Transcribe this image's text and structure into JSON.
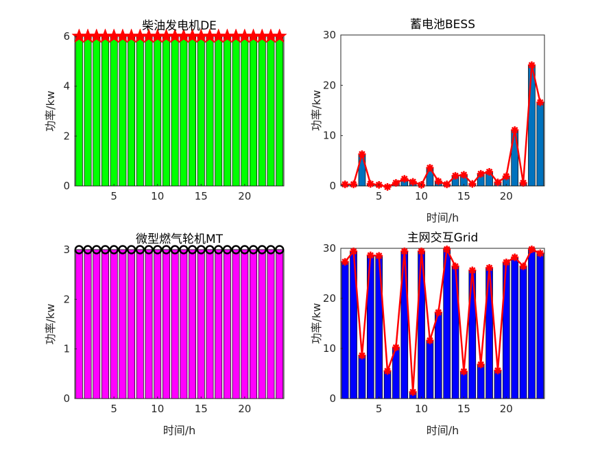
{
  "chart_data": [
    {
      "type": "bar",
      "title": "柴油发电机DE",
      "xlabel": "",
      "ylabel": "功率/kw",
      "xlim": [
        0.5,
        24.5
      ],
      "ylim": [
        0,
        6
      ],
      "xticks": [
        5,
        10,
        15,
        20
      ],
      "yticks": [
        0,
        2,
        4,
        6
      ],
      "grid": false,
      "x": [
        1,
        2,
        3,
        4,
        5,
        6,
        7,
        8,
        9,
        10,
        11,
        12,
        13,
        14,
        15,
        16,
        17,
        18,
        19,
        20,
        21,
        22,
        23,
        24
      ],
      "values": [
        6,
        6,
        6,
        6,
        6,
        6,
        6,
        6,
        6,
        6,
        6,
        6,
        6,
        6,
        6,
        6,
        6,
        6,
        6,
        6,
        6,
        6,
        6,
        6
      ],
      "colors": {
        "bar": "#00ff00",
        "edge": "#000000",
        "marker": "#ff0000"
      },
      "marker": "pentagram",
      "line": false
    },
    {
      "type": "bar",
      "title": "蓄电池BESS",
      "xlabel": "时间/h",
      "ylabel": "功率/kw",
      "xlim": [
        0.5,
        24.5
      ],
      "ylim": [
        0,
        30
      ],
      "xticks": [
        5,
        10,
        15,
        20
      ],
      "yticks": [
        0,
        10,
        20,
        30
      ],
      "grid": false,
      "x": [
        1,
        2,
        3,
        4,
        5,
        6,
        7,
        8,
        9,
        10,
        11,
        12,
        13,
        14,
        15,
        16,
        17,
        18,
        19,
        20,
        21,
        22,
        23,
        24
      ],
      "values": [
        0.3,
        0.3,
        6.3,
        0.4,
        0.2,
        -0.2,
        0.6,
        1.4,
        0.8,
        0.2,
        3.6,
        0.9,
        0.3,
        2.0,
        2.2,
        0.4,
        2.4,
        2.8,
        0.7,
        1.9,
        11.1,
        0.6,
        24.0,
        16.6
      ],
      "colors": {
        "bar": "#0072bd",
        "edge": "#000000",
        "line": "#ff0000",
        "marker": "#ff0000"
      },
      "marker": "asterisk",
      "line": true
    },
    {
      "type": "bar",
      "title": "微型燃气轮机MT",
      "xlabel": "时间/h",
      "ylabel": "功率/kw",
      "xlim": [
        0.5,
        24.5
      ],
      "ylim": [
        0,
        3
      ],
      "xticks": [
        5,
        10,
        15,
        20
      ],
      "yticks": [
        0,
        1,
        2,
        3
      ],
      "grid": false,
      "x": [
        1,
        2,
        3,
        4,
        5,
        6,
        7,
        8,
        9,
        10,
        11,
        12,
        13,
        14,
        15,
        16,
        17,
        18,
        19,
        20,
        21,
        22,
        23,
        24
      ],
      "values": [
        3,
        3,
        3,
        3,
        3,
        3,
        3,
        3,
        3,
        3,
        3,
        3,
        3,
        3,
        3,
        3,
        3,
        3,
        3,
        3,
        3,
        3,
        3,
        3
      ],
      "colors": {
        "bar": "#ff00ff",
        "edge": "#000000",
        "marker": "#000000"
      },
      "marker": "circle",
      "line": false
    },
    {
      "type": "bar",
      "title": "主网交互Grid",
      "xlabel": "时间/h",
      "ylabel": "功率/kw",
      "xlim": [
        0.5,
        24.5
      ],
      "ylim": [
        0,
        30
      ],
      "xticks": [
        5,
        10,
        15,
        20
      ],
      "yticks": [
        0,
        10,
        20,
        30
      ],
      "grid": false,
      "x": [
        1,
        2,
        3,
        4,
        5,
        6,
        7,
        8,
        9,
        10,
        11,
        12,
        13,
        14,
        15,
        16,
        17,
        18,
        19,
        20,
        21,
        22,
        23,
        24
      ],
      "values": [
        27.3,
        29.4,
        8.6,
        28.6,
        28.5,
        5.5,
        10.2,
        29.4,
        1.3,
        29.4,
        11.6,
        17.2,
        29.8,
        26.4,
        5.4,
        25.6,
        6.8,
        26.1,
        5.6,
        27.2,
        28.2,
        26.4,
        29.8,
        29.0
      ],
      "colors": {
        "bar": "#0000ff",
        "edge": "#000000",
        "line": "#ff0000",
        "marker": "#ff0000"
      },
      "marker": "asterisk",
      "line": true
    }
  ]
}
